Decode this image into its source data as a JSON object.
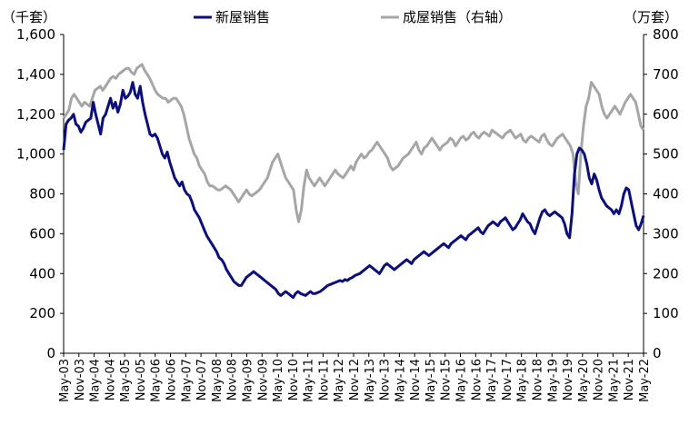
{
  "chart_data": {
    "type": "line",
    "title": "",
    "left_axis_unit": "（千套）",
    "right_axis_unit": "（万套）",
    "left_axis": {
      "ylim": [
        0,
        1600
      ],
      "ticks": [
        "0",
        "200",
        "400",
        "600",
        "800",
        "1,000",
        "1,200",
        "1,400",
        "1,600"
      ]
    },
    "right_axis": {
      "ylim": [
        0,
        800
      ],
      "ticks": [
        "0",
        "100",
        "200",
        "300",
        "400",
        "500",
        "600",
        "700",
        "800"
      ]
    },
    "x_ticks": [
      "May-03",
      "Nov-03",
      "May-04",
      "Nov-04",
      "May-05",
      "Nov-05",
      "May-06",
      "Nov-06",
      "May-07",
      "Nov-07",
      "May-08",
      "Nov-08",
      "May-09",
      "Nov-09",
      "May-10",
      "Nov-10",
      "May-11",
      "Nov-11",
      "May-12",
      "Nov-12",
      "May-13",
      "Nov-13",
      "May-14",
      "Nov-14",
      "May-15",
      "Nov-15",
      "May-16",
      "Nov-16",
      "May-17",
      "Nov-17",
      "May-18",
      "Nov-18",
      "May-19",
      "Nov-19",
      "May-20",
      "Nov-20",
      "May-21",
      "Nov-21",
      "May-22"
    ],
    "legend_position": "top",
    "grid": false,
    "series": [
      {
        "name": "新屋销售",
        "axis": "left",
        "color": "#0b0f7a",
        "values": [
          1020,
          1150,
          1170,
          1180,
          1200,
          1150,
          1140,
          1110,
          1130,
          1160,
          1170,
          1180,
          1260,
          1200,
          1150,
          1100,
          1180,
          1200,
          1240,
          1280,
          1230,
          1260,
          1210,
          1250,
          1320,
          1280,
          1290,
          1310,
          1360,
          1300,
          1280,
          1340,
          1260,
          1200,
          1150,
          1100,
          1090,
          1100,
          1080,
          1040,
          1000,
          980,
          1010,
          960,
          920,
          880,
          860,
          840,
          860,
          820,
          800,
          790,
          760,
          720,
          700,
          680,
          650,
          620,
          590,
          570,
          550,
          530,
          510,
          480,
          470,
          450,
          420,
          400,
          380,
          360,
          350,
          340,
          340,
          360,
          380,
          390,
          400,
          410,
          400,
          390,
          380,
          370,
          360,
          350,
          340,
          330,
          320,
          300,
          290,
          300,
          310,
          300,
          290,
          280,
          300,
          310,
          300,
          295,
          290,
          300,
          310,
          300,
          300,
          305,
          310,
          320,
          330,
          340,
          345,
          350,
          355,
          360,
          365,
          360,
          370,
          365,
          375,
          380,
          390,
          395,
          400,
          410,
          420,
          430,
          440,
          430,
          420,
          410,
          400,
          420,
          440,
          450,
          440,
          430,
          420,
          430,
          440,
          450,
          460,
          470,
          460,
          450,
          470,
          480,
          490,
          500,
          510,
          500,
          490,
          500,
          510,
          520,
          530,
          540,
          550,
          540,
          530,
          550,
          560,
          570,
          580,
          590,
          580,
          570,
          590,
          600,
          610,
          620,
          630,
          610,
          600,
          620,
          640,
          650,
          660,
          650,
          640,
          660,
          670,
          680,
          660,
          640,
          620,
          630,
          650,
          670,
          700,
          680,
          660,
          650,
          620,
          600,
          640,
          680,
          710,
          720,
          700,
          690,
          700,
          710,
          700,
          690,
          680,
          650,
          600,
          580,
          700,
          900,
          1000,
          1030,
          1020,
          1000,
          950,
          880,
          850,
          900,
          870,
          820,
          780,
          760,
          740,
          730,
          720,
          700,
          720,
          700,
          740,
          800,
          830,
          820,
          760,
          700,
          640,
          620,
          650,
          690
        ]
      },
      {
        "name": "成屋销售（右轴）",
        "axis": "right",
        "color": "#a6a6a6",
        "values": [
          590,
          600,
          610,
          640,
          650,
          640,
          630,
          620,
          630,
          625,
          620,
          640,
          660,
          665,
          670,
          660,
          670,
          680,
          690,
          695,
          690,
          700,
          705,
          710,
          715,
          715,
          705,
          700,
          715,
          720,
          725,
          710,
          700,
          690,
          675,
          660,
          650,
          645,
          640,
          640,
          630,
          635,
          640,
          640,
          630,
          620,
          600,
          570,
          540,
          520,
          500,
          490,
          470,
          460,
          450,
          430,
          420,
          420,
          415,
          410,
          410,
          415,
          420,
          415,
          410,
          400,
          390,
          380,
          390,
          400,
          410,
          400,
          395,
          400,
          405,
          410,
          420,
          430,
          440,
          460,
          480,
          490,
          500,
          480,
          460,
          440,
          430,
          420,
          410,
          360,
          330,
          360,
          420,
          460,
          440,
          430,
          420,
          430,
          440,
          430,
          420,
          430,
          440,
          450,
          460,
          450,
          445,
          440,
          450,
          460,
          470,
          460,
          480,
          490,
          500,
          490,
          495,
          505,
          510,
          520,
          530,
          520,
          510,
          500,
          490,
          470,
          460,
          465,
          470,
          480,
          490,
          495,
          500,
          510,
          520,
          530,
          510,
          500,
          515,
          520,
          530,
          540,
          530,
          520,
          510,
          520,
          525,
          530,
          540,
          535,
          520,
          530,
          540,
          545,
          535,
          540,
          550,
          555,
          545,
          540,
          550,
          555,
          550,
          545,
          560,
          555,
          550,
          545,
          540,
          550,
          555,
          560,
          550,
          540,
          545,
          550,
          535,
          530,
          540,
          545,
          540,
          535,
          530,
          545,
          550,
          535,
          525,
          520,
          530,
          540,
          545,
          550,
          540,
          530,
          520,
          500,
          430,
          400,
          500,
          570,
          620,
          640,
          680,
          670,
          660,
          650,
          620,
          600,
          590,
          600,
          610,
          620,
          610,
          600,
          615,
          630,
          640,
          650,
          640,
          630,
          600,
          570,
          560
        ]
      }
    ]
  }
}
